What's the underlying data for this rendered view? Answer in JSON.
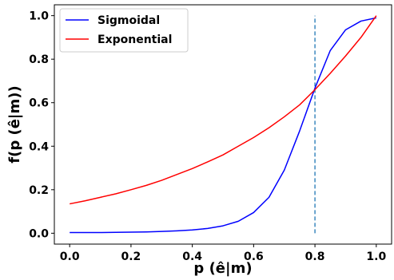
{
  "chart_data": {
    "type": "line",
    "xlabel": "p (ê|m)",
    "ylabel": "f(p (ê|m))",
    "xlim": [
      -0.05,
      1.05
    ],
    "ylim": [
      -0.05,
      1.05
    ],
    "x_ticks": [
      0.0,
      0.2,
      0.4,
      0.6,
      0.8,
      1.0
    ],
    "y_ticks": [
      0.0,
      0.2,
      0.4,
      0.6,
      0.8,
      1.0
    ],
    "x_tick_labels": [
      "0.0",
      "0.2",
      "0.4",
      "0.6",
      "0.8",
      "1.0"
    ],
    "y_tick_labels": [
      "0.0",
      "0.2",
      "0.4",
      "0.6",
      "0.8",
      "1.0"
    ],
    "grid": false,
    "legend_position": "top-left",
    "series": [
      {
        "name": "Sigmoidal",
        "color": "#0000ff",
        "x": [
          0.0,
          0.05,
          0.1,
          0.15,
          0.2,
          0.25,
          0.3,
          0.35,
          0.4,
          0.45,
          0.5,
          0.55,
          0.6,
          0.65,
          0.7,
          0.75,
          0.8,
          0.85,
          0.9,
          0.95,
          1.0
        ],
        "y": [
          0.003,
          0.003,
          0.003,
          0.004,
          0.005,
          0.006,
          0.008,
          0.011,
          0.015,
          0.022,
          0.034,
          0.055,
          0.095,
          0.165,
          0.29,
          0.47,
          0.667,
          0.84,
          0.935,
          0.975,
          0.99
        ]
      },
      {
        "name": "Exponential",
        "color": "#ff0000",
        "x": [
          0.0,
          0.05,
          0.1,
          0.15,
          0.2,
          0.25,
          0.3,
          0.35,
          0.4,
          0.45,
          0.5,
          0.55,
          0.6,
          0.65,
          0.7,
          0.75,
          0.8,
          0.85,
          0.9,
          0.95,
          1.0
        ],
        "y": [
          0.135,
          0.149,
          0.165,
          0.181,
          0.2,
          0.22,
          0.243,
          0.27,
          0.297,
          0.328,
          0.36,
          0.4,
          0.44,
          0.485,
          0.535,
          0.59,
          0.66,
          0.735,
          0.815,
          0.9,
          1.0
        ]
      }
    ],
    "vlines": [
      {
        "x": 0.8,
        "y_from": 0.0,
        "y_to": 1.0,
        "color": "#1f77b4",
        "style": "dashed"
      }
    ]
  }
}
